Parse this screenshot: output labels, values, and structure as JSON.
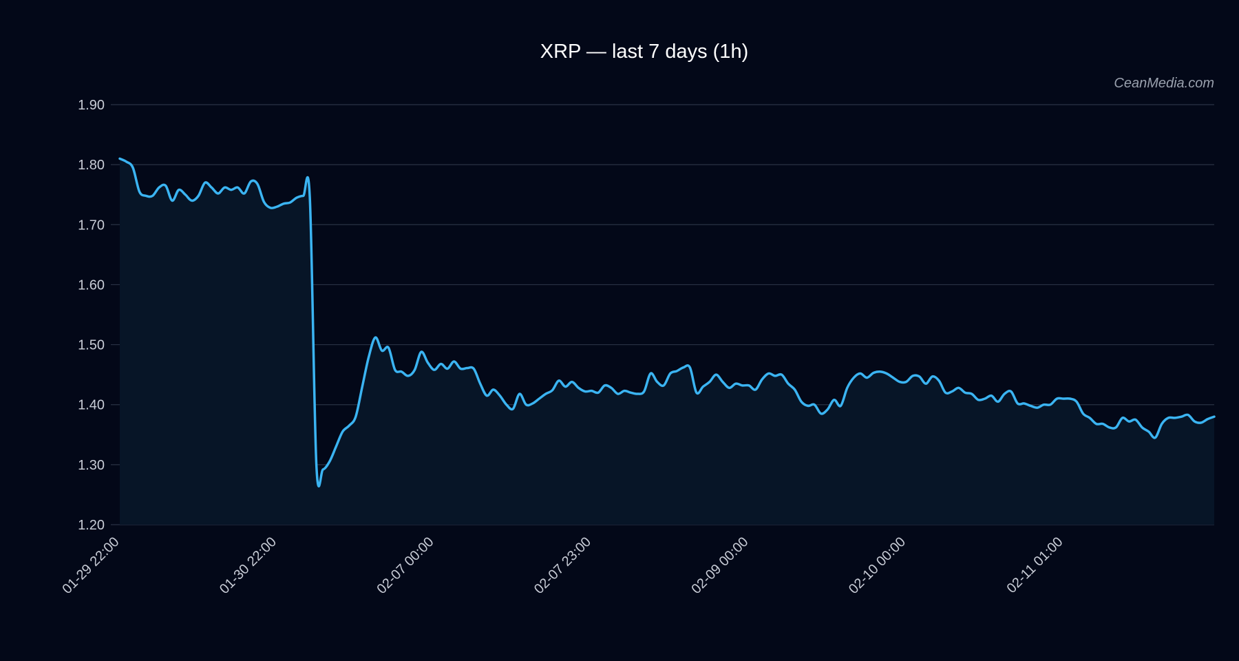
{
  "watermark": "CeanMedia.com",
  "colors": {
    "background": "#030818",
    "line": "#3bb4f2",
    "area": "#071527",
    "grid": "#2a3244",
    "text": "#c8ccd6",
    "title": "#ffffff",
    "watermark": "#9aa1ae"
  },
  "chart_data": {
    "type": "line",
    "title": "XRP — last 7 days (1h)",
    "xlabel": "",
    "ylabel": "",
    "ylim": [
      1.2,
      1.9
    ],
    "yticks": [
      "1.20",
      "1.30",
      "1.40",
      "1.50",
      "1.60",
      "1.70",
      "1.80",
      "1.90"
    ],
    "xtick_labels": [
      "01-29 22:00",
      "01-30 22:00",
      "02-07 00:00",
      "02-07 23:00",
      "02-09 00:00",
      "02-10 00:00",
      "02-11 01:00"
    ],
    "xtick_index": [
      0,
      24,
      48,
      72,
      96,
      120,
      144
    ],
    "grid": true,
    "area_fill": true,
    "series": [
      {
        "values": [
          1.81,
          1.805,
          1.795,
          1.755,
          1.748,
          1.748,
          1.762,
          1.765,
          1.74,
          1.758,
          1.75,
          1.74,
          1.748,
          1.77,
          1.762,
          1.752,
          1.762,
          1.758,
          1.762,
          1.752,
          1.772,
          1.768,
          1.738,
          1.728,
          1.73,
          1.735,
          1.737,
          1.745,
          1.748,
          1.745,
          1.3,
          1.292,
          1.305,
          1.33,
          1.355,
          1.365,
          1.38,
          1.43,
          1.48,
          1.512,
          1.49,
          1.495,
          1.458,
          1.455,
          1.448,
          1.458,
          1.488,
          1.47,
          1.458,
          1.468,
          1.46,
          1.472,
          1.46,
          1.461,
          1.46,
          1.435,
          1.415,
          1.425,
          1.415,
          1.4,
          1.393,
          1.418,
          1.4,
          1.402,
          1.41,
          1.418,
          1.424,
          1.44,
          1.43,
          1.438,
          1.428,
          1.422,
          1.423,
          1.42,
          1.432,
          1.428,
          1.418,
          1.423,
          1.42,
          1.418,
          1.422,
          1.452,
          1.438,
          1.432,
          1.452,
          1.456,
          1.462,
          1.462,
          1.42,
          1.43,
          1.438,
          1.45,
          1.438,
          1.428,
          1.435,
          1.432,
          1.432,
          1.425,
          1.442,
          1.452,
          1.448,
          1.45,
          1.435,
          1.425,
          1.405,
          1.398,
          1.4,
          1.385,
          1.392,
          1.408,
          1.398,
          1.428,
          1.445,
          1.452,
          1.445,
          1.453,
          1.455,
          1.452,
          1.445,
          1.438,
          1.438,
          1.448,
          1.447,
          1.435,
          1.447,
          1.44,
          1.42,
          1.422,
          1.428,
          1.42,
          1.418,
          1.408,
          1.41,
          1.415,
          1.405,
          1.418,
          1.422,
          1.402,
          1.402,
          1.398,
          1.395,
          1.4,
          1.4,
          1.41,
          1.41,
          1.41,
          1.405,
          1.385,
          1.378,
          1.368,
          1.368,
          1.362,
          1.362,
          1.378,
          1.372,
          1.375,
          1.362,
          1.355,
          1.345,
          1.368,
          1.378,
          1.378,
          1.38,
          1.383,
          1.372,
          1.37,
          1.376,
          1.38
        ]
      }
    ]
  }
}
